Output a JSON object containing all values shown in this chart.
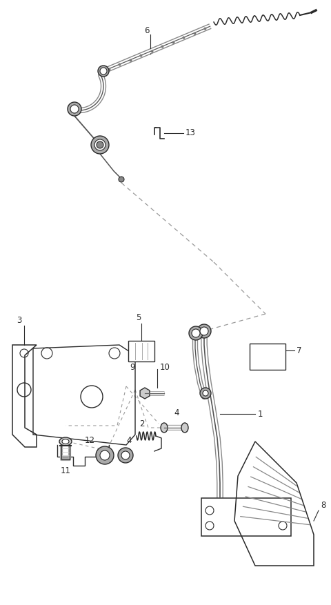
{
  "bg_color": "#ffffff",
  "line_color": "#2a2a2a",
  "dashed_color": "#999999",
  "fig_width": 4.8,
  "fig_height": 8.77,
  "dpi": 100
}
